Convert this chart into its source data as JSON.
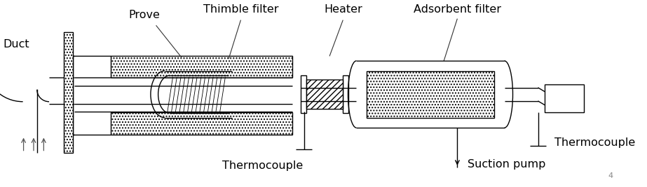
{
  "labels": {
    "duct": "Duct",
    "prove": "Prove",
    "thimble_filter": "Thimble filter",
    "heater": "Heater",
    "adsorbent_filter": "Adsorbent filter",
    "thermocouple_bottom": "Thermocouple",
    "thermocouple_right": "Thermocouple",
    "suction_pump": "Suction pump"
  },
  "page_number": "4",
  "figsize": [
    9.23,
    2.68
  ],
  "dpi": 100
}
